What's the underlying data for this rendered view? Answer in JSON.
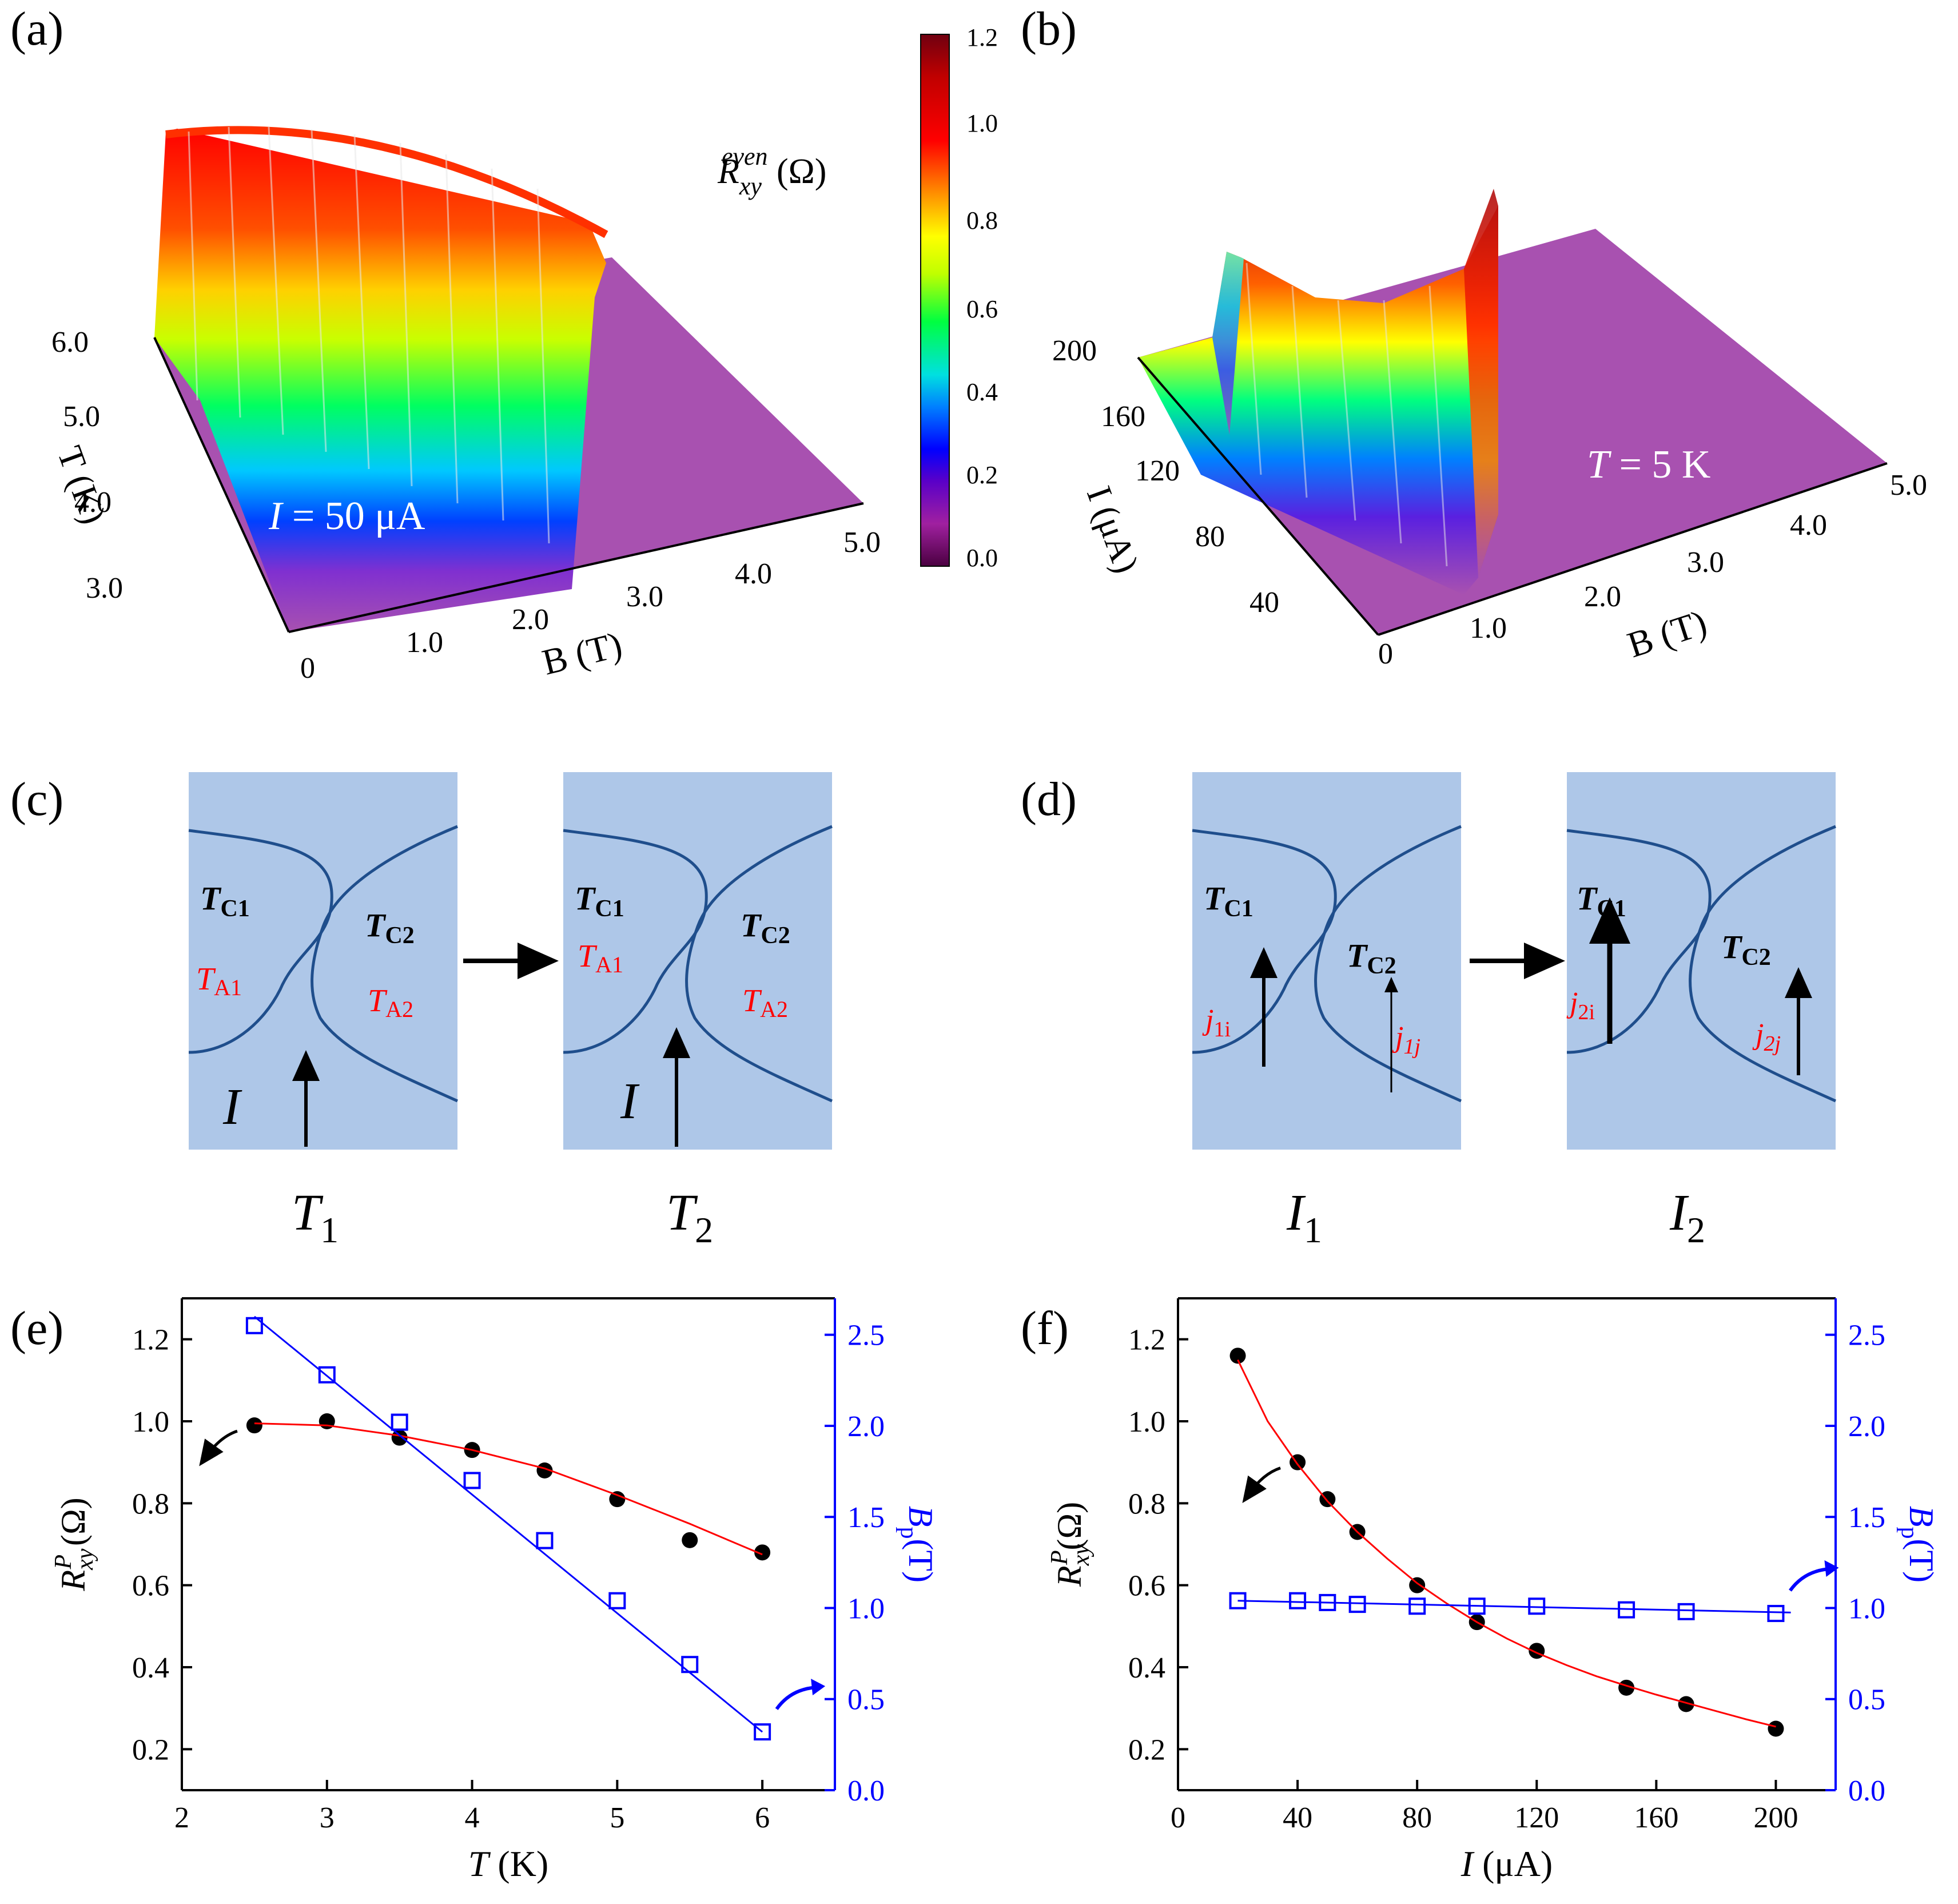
{
  "colors": {
    "black": "#000000",
    "red": "#ff0000",
    "blue": "#0000ff",
    "panel_fill": "#aec7e8",
    "boundary": "#1f4e8c",
    "surface_base": "#a851b0"
  },
  "panels": {
    "a": {
      "label": "(a)",
      "annotation": "I = 50 μA",
      "ann_I": "I",
      "ann_rest": " = 50 μA",
      "axis_T": {
        "label": "T (K)",
        "ticks": [
          "3.0",
          "4.0",
          "5.0",
          "6.0"
        ]
      },
      "axis_B": {
        "label": "B (T)",
        "ticks": [
          "0",
          "1.0",
          "2.0",
          "3.0",
          "4.0",
          "5.0"
        ]
      }
    },
    "colorbar": {
      "title": "R_xy^even (Ω)",
      "title_R": "R",
      "title_sub": "xy",
      "title_sup": "even",
      "title_unit": " (Ω)",
      "range": [
        0.0,
        1.2
      ],
      "ticks": [
        "0.0",
        "0.2",
        "0.4",
        "0.6",
        "0.8",
        "1.0",
        "1.2"
      ]
    },
    "b": {
      "label": "(b)",
      "annotation": "T = 5 K",
      "ann_T": "T",
      "ann_rest": " = 5 K",
      "axis_I": {
        "label": "I (μA)",
        "ticks": [
          "40",
          "80",
          "120",
          "160",
          "200"
        ]
      },
      "axis_B": {
        "label": "B (T)",
        "ticks": [
          "0",
          "1.0",
          "2.0",
          "3.0",
          "4.0",
          "5.0"
        ]
      }
    },
    "c": {
      "label": "(c)",
      "left_box": {
        "tc1": "T",
        "tc1_sub": "C1",
        "tc2": "T",
        "tc2_sub": "C2",
        "ta1": "T",
        "ta1_sub": "A1",
        "ta2": "T",
        "ta2_sub": "A2",
        "current": "I"
      },
      "right_box": {
        "tc1": "T",
        "tc1_sub": "C1",
        "tc2": "T",
        "tc2_sub": "C2",
        "ta1": "T",
        "ta1_sub": "A1",
        "ta2": "T",
        "ta2_sub": "A2",
        "current": "I"
      },
      "caption_left": "T",
      "caption_left_sub": "1",
      "caption_right": "T",
      "caption_right_sub": "2"
    },
    "d": {
      "label": "(d)",
      "left_box": {
        "tc1": "T",
        "tc1_sub": "C1",
        "tc2": "T",
        "tc2_sub": "C2",
        "j1": "j",
        "j1_sub": "1i",
        "j2": "j",
        "j2_sub": "1j"
      },
      "right_box": {
        "tc1": "T",
        "tc1_sub": "C1",
        "tc2": "T",
        "tc2_sub": "C2",
        "j1": "j",
        "j1_sub": "2i",
        "j2": "j",
        "j2_sub": "2j"
      },
      "caption_left": "I",
      "caption_left_sub": "1",
      "caption_right": "I",
      "caption_right_sub": "2"
    },
    "e": {
      "label": "(e)"
    },
    "f": {
      "label": "(f)"
    }
  },
  "chart_data": [
    {
      "id": "e",
      "type": "scatter",
      "xlabel": "T (K)",
      "xlabel_var": "T",
      "xlabel_unit": " (K)",
      "ylabel_left": "R_xy^P (Ω)",
      "ylabel_left_R": "R",
      "ylabel_left_sub": "xy",
      "ylabel_left_sup": "P",
      "ylabel_left_unit": " (Ω)",
      "ylabel_right": "B_p(T)",
      "ylabel_right_B": "B",
      "ylabel_right_sub": "p",
      "ylabel_right_unit": "(T)",
      "xlim": [
        2,
        6.5
      ],
      "ylim_left": [
        0.1,
        1.3
      ],
      "ylim_right": [
        0.0,
        2.7
      ],
      "xticks": [
        2,
        3,
        4,
        5,
        6
      ],
      "yticks_left": [
        0.2,
        0.4,
        0.6,
        0.8,
        1.0,
        1.2
      ],
      "yticks_right": [
        0.0,
        0.5,
        1.0,
        1.5,
        2.0,
        2.5
      ],
      "xtick_labels": [
        "2",
        "3",
        "4",
        "5",
        "6"
      ],
      "ytick_labels_left": [
        "0.2",
        "0.4",
        "0.6",
        "0.8",
        "1.0",
        "1.2"
      ],
      "ytick_labels_right": [
        "0.0",
        "0.5",
        "1.0",
        "1.5",
        "2.0",
        "2.5"
      ],
      "series": [
        {
          "name": "R_xy^P",
          "axis": "left",
          "marker": "filled-circle",
          "color": "#000000",
          "x": [
            2.5,
            3.0,
            3.5,
            4.0,
            4.5,
            5.0,
            5.5,
            6.0
          ],
          "y": [
            0.99,
            1.0,
            0.96,
            0.93,
            0.88,
            0.81,
            0.71,
            0.68
          ]
        },
        {
          "name": "R_xy^P fit",
          "axis": "left",
          "kind": "fit",
          "color": "#ff0000",
          "x": [
            2.5,
            3.0,
            3.5,
            4.0,
            4.5,
            5.0,
            5.5,
            6.0
          ],
          "y": [
            0.995,
            0.99,
            0.965,
            0.93,
            0.885,
            0.82,
            0.75,
            0.675
          ]
        },
        {
          "name": "B_p",
          "axis": "right",
          "marker": "open-square",
          "color": "#0000ff",
          "x": [
            2.5,
            3.0,
            3.5,
            4.0,
            4.5,
            5.0,
            5.5,
            6.0
          ],
          "y": [
            2.55,
            2.28,
            2.02,
            1.7,
            1.37,
            1.04,
            0.69,
            0.32
          ]
        },
        {
          "name": "B_p fit",
          "axis": "right",
          "kind": "fit",
          "color": "#0000ff",
          "x": [
            2.5,
            6.0
          ],
          "y": [
            2.6,
            0.32
          ]
        }
      ]
    },
    {
      "id": "f",
      "type": "scatter",
      "xlabel": "I (μA)",
      "xlabel_var": "I",
      "xlabel_unit": " (μA)",
      "ylabel_left": "R_xy^P(Ω)",
      "ylabel_left_R": "R",
      "ylabel_left_sub": "xy",
      "ylabel_left_sup": "P",
      "ylabel_left_unit": "(Ω)",
      "ylabel_right": "B_p(T)",
      "ylabel_right_B": "B",
      "ylabel_right_sub": "p",
      "ylabel_right_unit": "(T)",
      "xlim": [
        0,
        220
      ],
      "ylim_left": [
        0.1,
        1.3
      ],
      "ylim_right": [
        0.0,
        2.7
      ],
      "xticks": [
        0,
        40,
        80,
        120,
        160,
        200
      ],
      "yticks_left": [
        0.2,
        0.4,
        0.6,
        0.8,
        1.0,
        1.2
      ],
      "yticks_right": [
        0.0,
        0.5,
        1.0,
        1.5,
        2.0,
        2.5
      ],
      "xtick_labels": [
        "0",
        "40",
        "80",
        "120",
        "160",
        "200"
      ],
      "ytick_labels_left": [
        "0.2",
        "0.4",
        "0.6",
        "0.8",
        "1.0",
        "1.2"
      ],
      "ytick_labels_right": [
        "0.0",
        "0.5",
        "1.0",
        "1.5",
        "2.0",
        "2.5"
      ],
      "series": [
        {
          "name": "R_xy^P",
          "axis": "left",
          "marker": "filled-circle",
          "color": "#000000",
          "x": [
            20,
            40,
            50,
            60,
            80,
            100,
            120,
            150,
            170,
            200
          ],
          "y": [
            1.16,
            0.9,
            0.81,
            0.73,
            0.6,
            0.51,
            0.44,
            0.35,
            0.31,
            0.25
          ]
        },
        {
          "name": "R_xy^P fit",
          "axis": "left",
          "kind": "fit",
          "color": "#ff0000",
          "x": [
            20,
            30,
            40,
            50,
            60,
            70,
            80,
            90,
            100,
            110,
            120,
            130,
            140,
            150,
            160,
            170,
            180,
            190,
            200
          ],
          "y": [
            1.15,
            1.0,
            0.895,
            0.805,
            0.73,
            0.665,
            0.605,
            0.555,
            0.51,
            0.47,
            0.435,
            0.405,
            0.378,
            0.355,
            0.333,
            0.313,
            0.293,
            0.273,
            0.255
          ]
        },
        {
          "name": "B_p",
          "axis": "right",
          "marker": "open-square",
          "color": "#0000ff",
          "x": [
            20,
            40,
            50,
            60,
            80,
            100,
            120,
            150,
            170,
            200
          ],
          "y": [
            1.04,
            1.04,
            1.03,
            1.02,
            1.01,
            1.01,
            1.01,
            0.99,
            0.98,
            0.97
          ]
        },
        {
          "name": "B_p fit",
          "axis": "right",
          "kind": "fit",
          "color": "#0000ff",
          "x": [
            20,
            205
          ],
          "y": [
            1.04,
            0.975
          ]
        }
      ]
    }
  ]
}
